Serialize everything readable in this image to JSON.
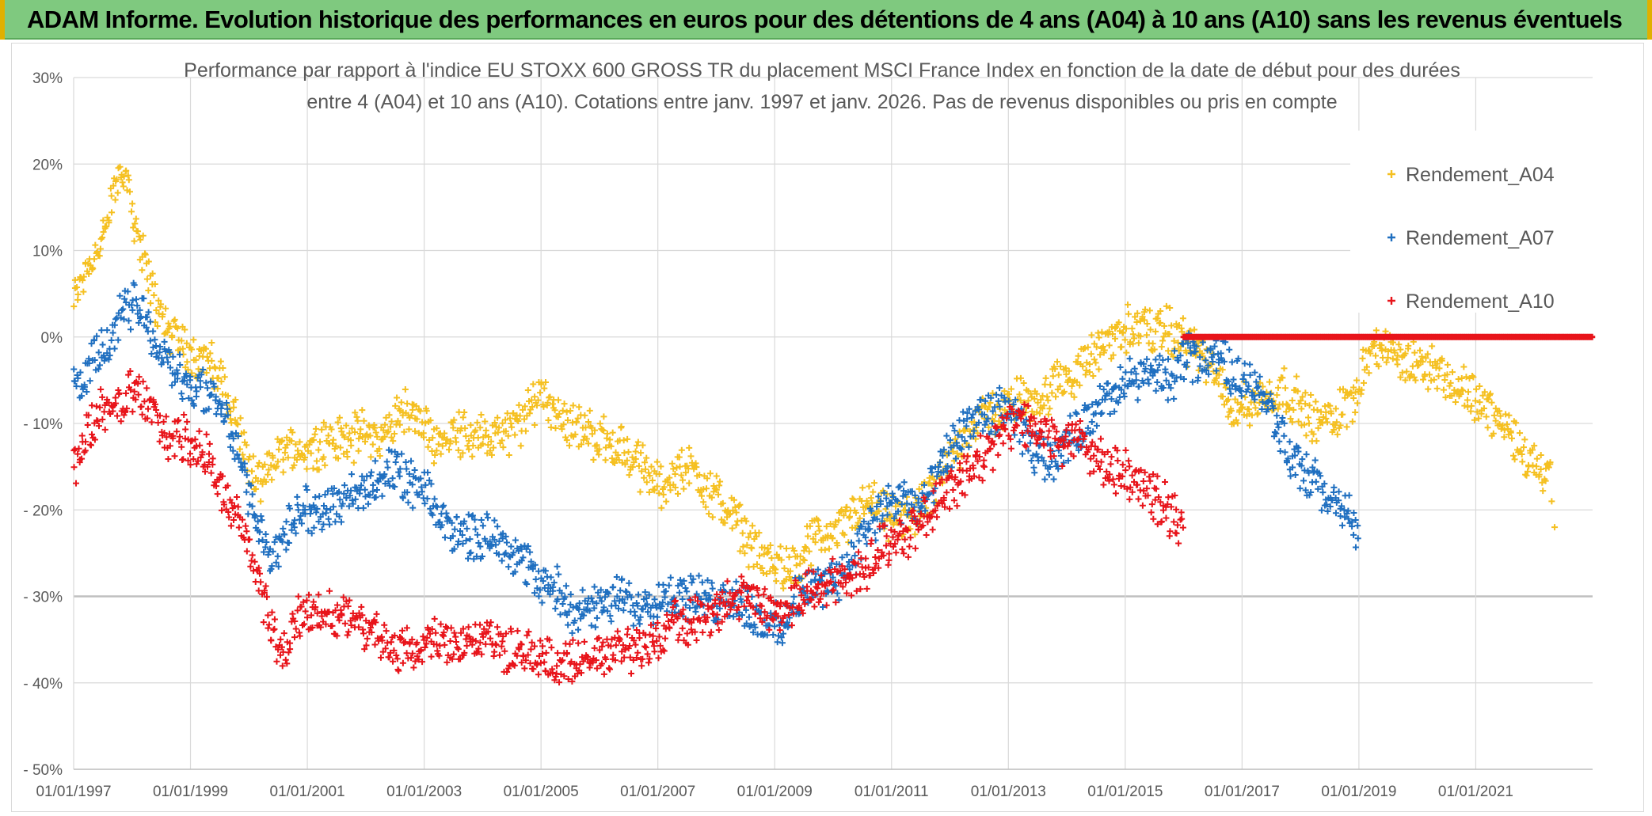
{
  "banner": {
    "title": "ADAM Informe. Evolution historique des performances en euros pour des détentions de 4 ans (A04) à 10 ans (A10) sans les revenus éventuels"
  },
  "colors": {
    "banner_bg": "#7fc97f",
    "A04": "#f5c021",
    "A07": "#1f6fc0",
    "A10": "#e8141a"
  },
  "chart_data": {
    "type": "scatter",
    "title": "Performance par rapport à l'indice EU STOXX 600 GROSS TR  du placement MSCI France Index en fonction de la date de début pour des durées",
    "subtitle": "entre 4 (A04) et 10 ans (A10). Cotations entre janv. 1997 et janv. 2026. Pas de revenus disponibles ou pris en compte",
    "xlabel": "",
    "ylabel": "",
    "x_unit": "year",
    "xlim": [
      1997.0,
      2023.0
    ],
    "ylim": [
      -50,
      30
    ],
    "y_ticks": [
      30,
      20,
      10,
      0,
      -10,
      -20,
      -30,
      -40,
      -50
    ],
    "y_tick_labels": [
      "30%",
      "20%",
      "10%",
      "0%",
      "- 10%",
      "- 20%",
      "- 30%",
      "- 40%",
      "- 50%"
    ],
    "x_ticks": [
      1997,
      1999,
      2001,
      2003,
      2005,
      2007,
      2009,
      2011,
      2013,
      2015,
      2017,
      2019,
      2021
    ],
    "x_tick_labels": [
      "01/01/1997",
      "01/01/1999",
      "01/01/2001",
      "01/01/2003",
      "01/01/2005",
      "01/01/2007",
      "01/01/2009",
      "01/01/2011",
      "01/01/2013",
      "01/01/2015",
      "01/01/2017",
      "01/01/2019",
      "01/01/2021"
    ],
    "marker": "+",
    "legend_position": "top-right",
    "series": [
      {
        "name": "Rendement_A04",
        "color": "#f5c021",
        "x": [
          1997.0,
          1997.2,
          1997.4,
          1997.55,
          1997.7,
          1997.85,
          1998.0,
          1998.2,
          1998.4,
          1998.6,
          1998.8,
          1999.0,
          1999.2,
          1999.4,
          1999.6,
          1999.8,
          2000.0,
          2000.2,
          2000.4,
          2000.6,
          2000.8,
          2001.0,
          2001.3,
          2001.6,
          2002.0,
          2002.3,
          2002.6,
          2002.9,
          2003.2,
          2003.5,
          2003.8,
          2004.1,
          2004.4,
          2004.7,
          2005.0,
          2005.2,
          2005.5,
          2005.8,
          2006.1,
          2006.4,
          2006.7,
          2007.0,
          2007.3,
          2007.6,
          2007.9,
          2008.2,
          2008.5,
          2008.8,
          2009.1,
          2009.4,
          2009.7,
          2010.0,
          2010.3,
          2010.6,
          2010.9,
          2011.2,
          2011.5,
          2011.8,
          2012.1,
          2012.4,
          2012.7,
          2013.0,
          2013.3,
          2013.6,
          2013.9,
          2014.2,
          2014.5,
          2014.8,
          2015.0,
          2015.3,
          2015.6,
          2015.9,
          2016.2,
          2016.5,
          2016.8,
          2017.1,
          2017.4,
          2017.7,
          2018.0,
          2018.3,
          2018.6,
          2018.9,
          2019.2,
          2019.5,
          2019.8,
          2020.1,
          2020.4,
          2020.7,
          2021.0,
          2021.3,
          2021.6,
          2021.9,
          2022.1,
          2022.3
        ],
        "y": [
          4,
          8,
          10,
          12,
          17,
          20,
          15,
          9,
          4,
          1,
          0,
          -2,
          -2,
          -4,
          -6,
          -10,
          -15,
          -18,
          -14,
          -13,
          -13,
          -13,
          -12,
          -12,
          -11,
          -12,
          -8,
          -10,
          -12,
          -11,
          -11,
          -12,
          -11,
          -10,
          -6,
          -8,
          -10,
          -11,
          -12,
          -13,
          -15,
          -17,
          -16,
          -15,
          -18,
          -20,
          -23,
          -26,
          -26,
          -27,
          -23,
          -23,
          -21,
          -19,
          -21,
          -21,
          -20,
          -17,
          -13,
          -10,
          -9,
          -8,
          -7,
          -7,
          -5,
          -4,
          -2,
          0,
          1,
          1,
          1,
          0,
          -1,
          -4,
          -8,
          -8,
          -7,
          -6,
          -8,
          -10,
          -9,
          -7,
          -1,
          -2,
          -3,
          -3,
          -4,
          -6,
          -7,
          -9,
          -11,
          -14,
          -15,
          -16
        ],
        "x_tail": [
          2022.3,
          2022.35
        ],
        "y_tail": [
          -19,
          -22
        ]
      },
      {
        "name": "Rendement_A07",
        "color": "#1f6fc0",
        "x": [
          1997.0,
          1997.2,
          1997.4,
          1997.6,
          1997.8,
          1998.0,
          1998.2,
          1998.4,
          1998.6,
          1998.8,
          1999.0,
          1999.2,
          1999.4,
          1999.6,
          1999.8,
          2000.0,
          2000.2,
          2000.4,
          2000.6,
          2000.8,
          2001.0,
          2001.3,
          2001.6,
          2001.9,
          2002.2,
          2002.5,
          2002.8,
          2003.1,
          2003.4,
          2003.7,
          2004.0,
          2004.3,
          2004.6,
          2004.9,
          2005.2,
          2005.5,
          2005.8,
          2006.1,
          2006.4,
          2006.7,
          2007.0,
          2007.3,
          2007.6,
          2007.9,
          2008.2,
          2008.5,
          2008.8,
          2009.1,
          2009.4,
          2009.7,
          2010.0,
          2010.3,
          2010.6,
          2010.9,
          2011.2,
          2011.5,
          2011.8,
          2012.1,
          2012.4,
          2012.7,
          2013.0,
          2013.3,
          2013.6,
          2013.9,
          2014.2,
          2014.5,
          2014.8,
          2015.1,
          2015.4,
          2015.7,
          2016.0,
          2016.3,
          2016.6,
          2016.9,
          2017.2,
          2017.5,
          2017.8,
          2018.1,
          2018.4,
          2018.7,
          2019.0
        ],
        "y": [
          -6,
          -5,
          -2,
          -1,
          2,
          4,
          3,
          -1,
          -3,
          -4,
          -6,
          -6,
          -7,
          -9,
          -13,
          -19,
          -22,
          -26,
          -23,
          -21,
          -20,
          -20,
          -19,
          -18,
          -16,
          -16,
          -17,
          -19,
          -22,
          -23,
          -23,
          -23,
          -25,
          -28,
          -29,
          -31,
          -32,
          -31,
          -30,
          -31,
          -30,
          -30,
          -30,
          -31,
          -30,
          -31,
          -33,
          -34,
          -30,
          -29,
          -28,
          -26,
          -22,
          -20,
          -19,
          -20,
          -16,
          -12,
          -10,
          -9,
          -8,
          -12,
          -14,
          -13,
          -11,
          -8,
          -7,
          -5,
          -4,
          -5,
          -3,
          -2,
          -2,
          -5,
          -5,
          -8,
          -14,
          -16,
          -18,
          -20,
          -22
        ]
      },
      {
        "name": "Rendement_A10",
        "color": "#e8141a",
        "x": [
          1997.0,
          1997.2,
          1997.4,
          1997.6,
          1997.8,
          1998.0,
          1998.2,
          1998.4,
          1998.6,
          1998.8,
          1999.0,
          1999.2,
          1999.4,
          1999.6,
          1999.8,
          2000.0,
          2000.2,
          2000.4,
          2000.6,
          2000.8,
          2001.0,
          2001.3,
          2001.6,
          2001.9,
          2002.2,
          2002.5,
          2002.8,
          2003.1,
          2003.4,
          2003.7,
          2004.0,
          2004.3,
          2004.6,
          2004.9,
          2005.2,
          2005.5,
          2005.8,
          2006.1,
          2006.4,
          2006.7,
          2007.0,
          2007.3,
          2007.6,
          2007.9,
          2008.2,
          2008.5,
          2008.8,
          2009.1,
          2009.4,
          2009.7,
          2010.0,
          2010.3,
          2010.6,
          2010.9,
          2011.2,
          2011.5,
          2011.8,
          2012.1,
          2012.4,
          2012.7,
          2013.0,
          2013.3,
          2013.6,
          2013.9,
          2014.2,
          2014.5,
          2014.8,
          2015.1,
          2015.4,
          2015.7,
          2016.0
        ],
        "y": [
          -15,
          -12,
          -9,
          -9,
          -8,
          -6,
          -7,
          -9,
          -12,
          -11,
          -12,
          -13,
          -16,
          -19,
          -21,
          -24,
          -29,
          -34,
          -37,
          -33,
          -32,
          -32,
          -32,
          -33,
          -35,
          -37,
          -36,
          -35,
          -35,
          -35,
          -35,
          -36,
          -36,
          -37,
          -38,
          -38,
          -37,
          -37,
          -36,
          -36,
          -35,
          -33,
          -33,
          -32,
          -31,
          -30,
          -31,
          -32,
          -30,
          -29,
          -28,
          -28,
          -26,
          -24,
          -23,
          -21,
          -19,
          -17,
          -15,
          -13,
          -10,
          -10,
          -11,
          -12,
          -12,
          -14,
          -15,
          -16,
          -18,
          -20,
          -22
        ],
        "flat_x": [
          2016.0,
          2022.99
        ],
        "flat_y": [
          0,
          0
        ]
      }
    ]
  }
}
